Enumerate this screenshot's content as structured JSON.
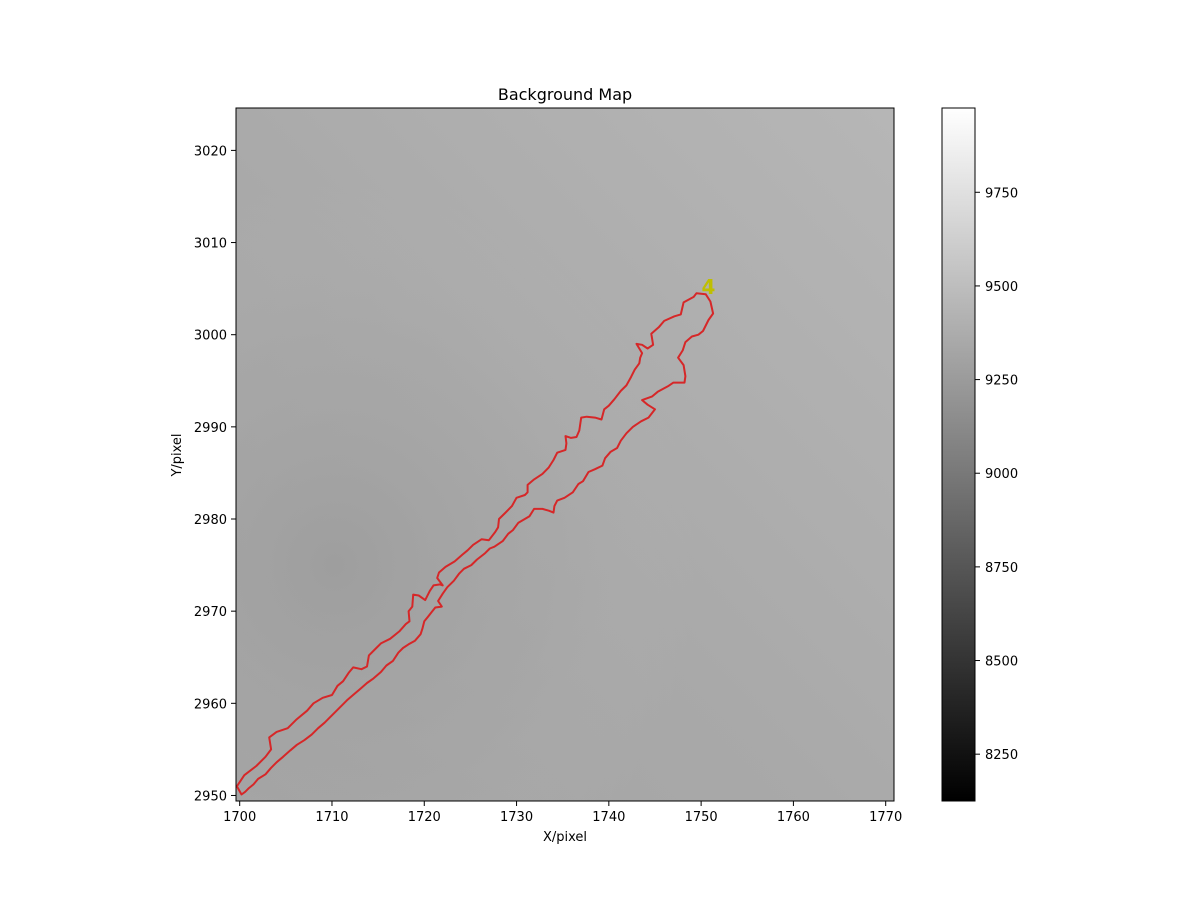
{
  "chart_data": {
    "type": "heatmap",
    "title": "Background Map",
    "xlabel": "X/pixel",
    "ylabel": "Y/pixel",
    "xlim": [
      1699.6,
      1770.9
    ],
    "ylim": [
      2949.4,
      3024.6
    ],
    "x_ticks": [
      1700,
      1710,
      1720,
      1730,
      1740,
      1750,
      1760,
      1770
    ],
    "y_ticks": [
      2950,
      2960,
      2970,
      2980,
      2990,
      3000,
      3010,
      3020
    ],
    "grid": false,
    "colormap": "gray",
    "colorbar": {
      "range": [
        8125,
        9975
      ],
      "ticks": [
        8250,
        8500,
        8750,
        9000,
        9250,
        9500,
        9750
      ]
    },
    "background_field": {
      "min_value": 9330,
      "min_at": [
        1706,
        2971
      ],
      "max_value": 9560,
      "direction": "increasing toward upper right and right edge"
    },
    "contour": {
      "color": "#d62728",
      "label": "4",
      "label_color": "#bfbf00",
      "label_at": [
        1750.8,
        3005.2
      ],
      "points": [
        [
          1699.7,
          2951.0
        ],
        [
          1700.5,
          2952.2
        ],
        [
          1701.8,
          2953.2
        ],
        [
          1702.8,
          2954.2
        ],
        [
          1703.4,
          2955.0
        ],
        [
          1703.2,
          2956.3
        ],
        [
          1704.0,
          2956.9
        ],
        [
          1705.2,
          2957.3
        ],
        [
          1706.1,
          2958.2
        ],
        [
          1707.3,
          2959.2
        ],
        [
          1708.0,
          2960.0
        ],
        [
          1709.0,
          2960.6
        ],
        [
          1710.0,
          2960.9
        ],
        [
          1710.6,
          2961.9
        ],
        [
          1711.2,
          2962.4
        ],
        [
          1711.8,
          2963.3
        ],
        [
          1712.3,
          2963.9
        ],
        [
          1713.2,
          2963.7
        ],
        [
          1713.8,
          2964.0
        ],
        [
          1714.0,
          2965.2
        ],
        [
          1714.8,
          2966.0
        ],
        [
          1715.3,
          2966.5
        ],
        [
          1716.3,
          2967.0
        ],
        [
          1717.3,
          2967.8
        ],
        [
          1718.0,
          2968.6
        ],
        [
          1718.4,
          2968.9
        ],
        [
          1718.3,
          2970.0
        ],
        [
          1718.7,
          2970.5
        ],
        [
          1718.8,
          2971.8
        ],
        [
          1719.4,
          2971.7
        ],
        [
          1720.1,
          2971.2
        ],
        [
          1720.6,
          2972.2
        ],
        [
          1721.0,
          2972.8
        ],
        [
          1721.7,
          2972.9
        ],
        [
          1722.0,
          2972.8
        ],
        [
          1721.4,
          2973.6
        ],
        [
          1721.6,
          2974.2
        ],
        [
          1722.3,
          2974.8
        ],
        [
          1723.3,
          2975.4
        ],
        [
          1724.1,
          2976.1
        ],
        [
          1724.7,
          2976.6
        ],
        [
          1725.3,
          2977.2
        ],
        [
          1726.2,
          2977.8
        ],
        [
          1727.0,
          2977.7
        ],
        [
          1727.7,
          2978.6
        ],
        [
          1728.0,
          2979.1
        ],
        [
          1728.1,
          2980.0
        ],
        [
          1728.8,
          2980.7
        ],
        [
          1729.5,
          2981.4
        ],
        [
          1730.0,
          2982.3
        ],
        [
          1730.9,
          2982.6
        ],
        [
          1731.2,
          2982.9
        ],
        [
          1731.2,
          2983.7
        ],
        [
          1731.9,
          2984.3
        ],
        [
          1732.8,
          2984.9
        ],
        [
          1733.5,
          2985.6
        ],
        [
          1734.0,
          2986.4
        ],
        [
          1734.4,
          2987.2
        ],
        [
          1735.3,
          2987.5
        ],
        [
          1735.4,
          2988.2
        ],
        [
          1735.3,
          2989.0
        ],
        [
          1735.9,
          2988.8
        ],
        [
          1736.5,
          2988.9
        ],
        [
          1736.8,
          2989.6
        ],
        [
          1737.0,
          2991.0
        ],
        [
          1737.6,
          2991.1
        ],
        [
          1738.5,
          2991.0
        ],
        [
          1739.2,
          2990.8
        ],
        [
          1739.5,
          2991.9
        ],
        [
          1740.0,
          2992.3
        ],
        [
          1740.6,
          2993.0
        ],
        [
          1741.3,
          2993.9
        ],
        [
          1741.9,
          2994.5
        ],
        [
          1742.4,
          2995.4
        ],
        [
          1742.8,
          2996.2
        ],
        [
          1743.3,
          2996.9
        ],
        [
          1743.4,
          2997.5
        ],
        [
          1743.6,
          2998.0
        ],
        [
          1743.0,
          2999.0
        ],
        [
          1743.6,
          2998.9
        ],
        [
          1744.2,
          2998.5
        ],
        [
          1744.8,
          2998.9
        ],
        [
          1744.6,
          3000.1
        ],
        [
          1745.4,
          3000.8
        ],
        [
          1746.0,
          3001.5
        ],
        [
          1747.1,
          3002.0
        ],
        [
          1747.8,
          3002.2
        ],
        [
          1748.1,
          3003.5
        ],
        [
          1749.2,
          3004.1
        ],
        [
          1749.5,
          3004.5
        ],
        [
          1750.5,
          3004.4
        ],
        [
          1751.0,
          3003.6
        ],
        [
          1751.3,
          3002.3
        ],
        [
          1750.8,
          3001.6
        ],
        [
          1750.2,
          3000.4
        ],
        [
          1749.7,
          3000.0
        ],
        [
          1749.0,
          2999.8
        ],
        [
          1748.3,
          2999.2
        ],
        [
          1748.0,
          2998.3
        ],
        [
          1747.5,
          2997.5
        ],
        [
          1748.1,
          2996.7
        ],
        [
          1748.3,
          2995.5
        ],
        [
          1748.2,
          2994.8
        ],
        [
          1747.0,
          2994.8
        ],
        [
          1746.4,
          2994.4
        ],
        [
          1745.3,
          2993.8
        ],
        [
          1744.7,
          2993.3
        ],
        [
          1743.6,
          2992.9
        ],
        [
          1744.2,
          2992.4
        ],
        [
          1745.0,
          2991.9
        ],
        [
          1744.3,
          2991.0
        ],
        [
          1743.5,
          2990.6
        ],
        [
          1742.6,
          2990.0
        ],
        [
          1741.9,
          2989.3
        ],
        [
          1741.3,
          2988.5
        ],
        [
          1740.9,
          2987.7
        ],
        [
          1740.2,
          2987.3
        ],
        [
          1739.6,
          2986.6
        ],
        [
          1739.3,
          2985.8
        ],
        [
          1738.5,
          2985.4
        ],
        [
          1737.8,
          2985.1
        ],
        [
          1737.2,
          2984.1
        ],
        [
          1736.7,
          2983.8
        ],
        [
          1736.1,
          2982.9
        ],
        [
          1735.2,
          2982.3
        ],
        [
          1734.4,
          2982.0
        ],
        [
          1734.1,
          2981.4
        ],
        [
          1734.0,
          2980.7
        ],
        [
          1733.5,
          2980.9
        ],
        [
          1732.8,
          2981.1
        ],
        [
          1731.9,
          2981.1
        ],
        [
          1731.4,
          2980.3
        ],
        [
          1730.2,
          2979.6
        ],
        [
          1729.6,
          2978.8
        ],
        [
          1729.1,
          2978.4
        ],
        [
          1728.5,
          2977.6
        ],
        [
          1727.6,
          2977.0
        ],
        [
          1727.1,
          2976.8
        ],
        [
          1726.6,
          2976.3
        ],
        [
          1725.7,
          2975.6
        ],
        [
          1725.1,
          2975.0
        ],
        [
          1724.3,
          2974.6
        ],
        [
          1723.8,
          2974.1
        ],
        [
          1723.2,
          2973.3
        ],
        [
          1722.5,
          2972.6
        ],
        [
          1722.0,
          2971.9
        ],
        [
          1721.5,
          2971.1
        ],
        [
          1721.9,
          2970.5
        ],
        [
          1721.2,
          2970.4
        ],
        [
          1720.8,
          2969.9
        ],
        [
          1720.4,
          2969.4
        ],
        [
          1720.0,
          2968.9
        ],
        [
          1719.8,
          2968.1
        ],
        [
          1719.6,
          2967.5
        ],
        [
          1719.0,
          2966.8
        ],
        [
          1718.3,
          2966.4
        ],
        [
          1717.7,
          2966.0
        ],
        [
          1717.2,
          2965.5
        ],
        [
          1716.6,
          2964.6
        ],
        [
          1715.9,
          2964.1
        ],
        [
          1715.3,
          2963.4
        ],
        [
          1714.5,
          2962.7
        ],
        [
          1713.8,
          2962.2
        ],
        [
          1713.1,
          2961.6
        ],
        [
          1712.4,
          2961.0
        ],
        [
          1711.7,
          2960.4
        ],
        [
          1711.2,
          2959.9
        ],
        [
          1710.5,
          2959.2
        ],
        [
          1709.7,
          2958.4
        ],
        [
          1709.2,
          2957.9
        ],
        [
          1708.5,
          2957.3
        ],
        [
          1707.8,
          2956.6
        ],
        [
          1707.0,
          2956.0
        ],
        [
          1706.2,
          2955.5
        ],
        [
          1705.5,
          2954.9
        ],
        [
          1704.7,
          2954.2
        ],
        [
          1704.0,
          2953.6
        ],
        [
          1703.4,
          2953.0
        ],
        [
          1702.8,
          2952.3
        ],
        [
          1702.0,
          2951.8
        ],
        [
          1701.5,
          2951.2
        ],
        [
          1701.0,
          2950.8
        ],
        [
          1700.6,
          2950.4
        ],
        [
          1700.2,
          2950.1
        ],
        [
          1699.7,
          2951.0
        ]
      ]
    }
  }
}
